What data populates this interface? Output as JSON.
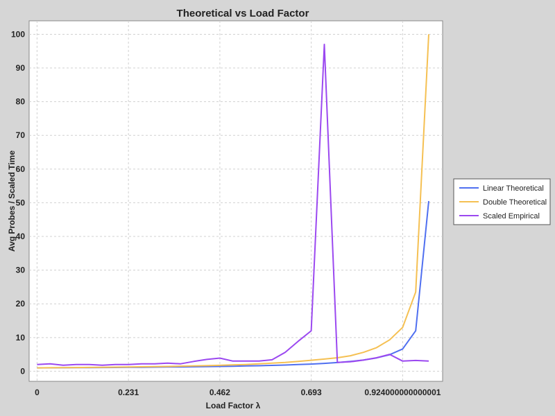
{
  "chart_data": {
    "type": "line",
    "title": "Theoretical vs Load Factor",
    "xlabel": "Load Factor λ",
    "ylabel": "Avg Probes / Scaled Time",
    "xlim": [
      -0.02,
      1.025
    ],
    "ylim": [
      -3,
      104
    ],
    "x_ticks": [
      0,
      0.231,
      0.462,
      0.693,
      0.924
    ],
    "x_tick_labels": [
      "0",
      "0.231",
      "0.462",
      "0.693",
      "0.924000000000001"
    ],
    "y_ticks": [
      0,
      10,
      20,
      30,
      40,
      50,
      60,
      70,
      80,
      90,
      100
    ],
    "y_tick_labels": [
      "0",
      "10",
      "20",
      "30",
      "40",
      "50",
      "60",
      "70",
      "80",
      "90",
      "100"
    ],
    "grid": true,
    "legend_position": "right",
    "x": [
      0,
      0.033,
      0.066,
      0.099,
      0.132,
      0.165,
      0.198,
      0.231,
      0.264,
      0.297,
      0.33,
      0.363,
      0.396,
      0.429,
      0.462,
      0.495,
      0.528,
      0.561,
      0.594,
      0.627,
      0.66,
      0.693,
      0.726,
      0.759,
      0.792,
      0.825,
      0.858,
      0.891,
      0.924,
      0.957,
      0.99
    ],
    "series": [
      {
        "name": "Linear Theoretical",
        "color": "#4f6ff0",
        "values": [
          1.0,
          1.02,
          1.04,
          1.06,
          1.08,
          1.1,
          1.12,
          1.15,
          1.18,
          1.21,
          1.25,
          1.29,
          1.33,
          1.38,
          1.43,
          1.49,
          1.56,
          1.64,
          1.74,
          1.84,
          1.97,
          2.13,
          2.32,
          2.57,
          2.9,
          3.33,
          3.95,
          4.9,
          6.6,
          12.0,
          50.5
        ]
      },
      {
        "name": "Double Theoretical",
        "color": "#f5c052",
        "values": [
          1.0,
          1.03,
          1.07,
          1.1,
          1.14,
          1.18,
          1.22,
          1.27,
          1.32,
          1.37,
          1.43,
          1.5,
          1.58,
          1.66,
          1.76,
          1.88,
          2.0,
          2.2,
          2.4,
          2.6,
          2.9,
          3.25,
          3.6,
          4.0,
          4.6,
          5.6,
          7.0,
          9.3,
          13.0,
          23.5,
          100.0
        ]
      },
      {
        "name": "Scaled Empirical",
        "color": "#9b48f0",
        "values": [
          2.0,
          2.2,
          1.8,
          2.0,
          2.0,
          1.8,
          2.0,
          2.0,
          2.2,
          2.2,
          2.4,
          2.2,
          2.9,
          3.5,
          3.9,
          3.0,
          3.0,
          3.0,
          3.4,
          5.6,
          8.9,
          12.0,
          97.0,
          2.6,
          2.8,
          3.3,
          4.0,
          5.0,
          3.0,
          3.2,
          3.0
        ]
      }
    ]
  }
}
